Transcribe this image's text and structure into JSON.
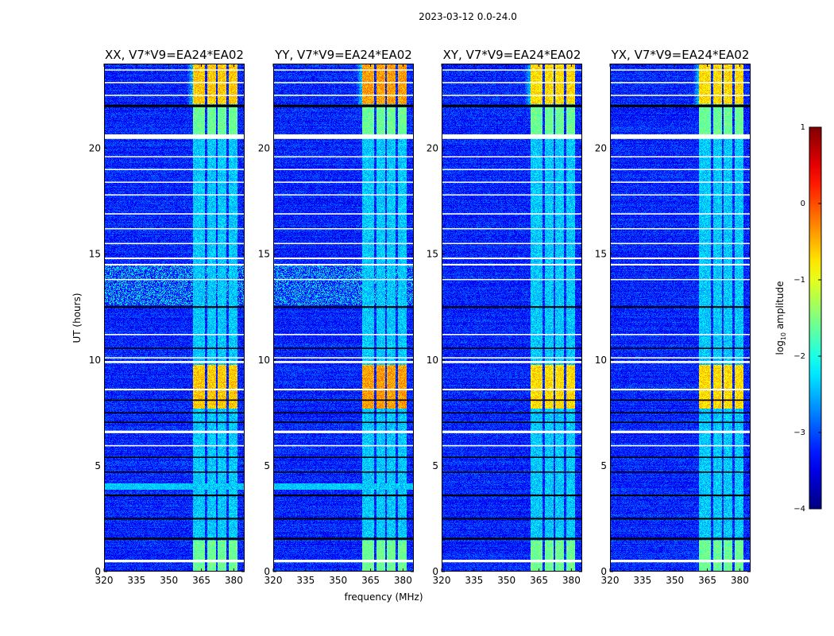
{
  "chart_data": {
    "type": "heatmap",
    "suptitle": "2023-03-12 0.0-24.0",
    "xlabel": "frequency (MHz)",
    "ylabel": "UT (hours)",
    "xlim": [
      320,
      385
    ],
    "ylim": [
      0,
      24
    ],
    "xticks": [
      "320",
      "335",
      "350",
      "365",
      "380"
    ],
    "xtick_values": [
      320,
      335,
      350,
      365,
      380
    ],
    "yticks": [
      "0",
      "5",
      "10",
      "15",
      "20"
    ],
    "ytick_values": [
      0,
      5,
      10,
      15,
      20
    ],
    "panels": [
      {
        "title": "XX, V7*V9=EA24*EA02",
        "bright_level": -0.6,
        "rfi_band_hours": [
          12.6,
          14.5
        ],
        "rfi_band2_hours": [
          3.9,
          4.2
        ]
      },
      {
        "title": "YY, V7*V9=EA24*EA02",
        "bright_level": -0.4,
        "rfi_band_hours": [
          12.6,
          14.5
        ],
        "rfi_band2_hours": [
          3.9,
          4.2
        ]
      },
      {
        "title": "XY, V7*V9=EA24*EA02",
        "bright_level": -0.7,
        "rfi_band_hours": null,
        "rfi_band2_hours": null
      },
      {
        "title": "YX, V7*V9=EA24*EA02",
        "bright_level": -0.7,
        "rfi_band_hours": null,
        "rfi_band2_hours": null
      }
    ],
    "background_level": -3.2,
    "signal_subbands_mhz": [
      [
        361,
        366.5
      ],
      [
        367.5,
        371.5
      ],
      [
        372.5,
        376.5
      ],
      [
        377.5,
        381.5
      ]
    ],
    "bright_periods_hours": [
      [
        22.1,
        24.0
      ],
      [
        7.7,
        9.8
      ]
    ],
    "moderate_periods_hours": [
      [
        20.6,
        22.0
      ],
      [
        0,
        1.5
      ]
    ],
    "flagged_rows": [
      {
        "hour": 0.5,
        "width": 0.12,
        "color": "#ffffff"
      },
      {
        "hour": 1.55,
        "width": 0.1,
        "color": "#000000"
      },
      {
        "hour": 2.5,
        "width": 0.08,
        "color": "#000000"
      },
      {
        "hour": 3.6,
        "width": 0.08,
        "color": "#000000"
      },
      {
        "hour": 4.7,
        "width": 0.06,
        "color": "#000000"
      },
      {
        "hour": 5.4,
        "width": 0.06,
        "color": "#000000"
      },
      {
        "hour": 5.95,
        "width": 0.06,
        "color": "#ffffff"
      },
      {
        "hour": 6.6,
        "width": 0.12,
        "color": "#ffffff"
      },
      {
        "hour": 7.05,
        "width": 0.06,
        "color": "#000000"
      },
      {
        "hour": 7.5,
        "width": 0.06,
        "color": "#000000"
      },
      {
        "hour": 8.1,
        "width": 0.06,
        "color": "#000000"
      },
      {
        "hour": 8.6,
        "width": 0.08,
        "color": "#ffffff"
      },
      {
        "hour": 9.9,
        "width": 0.1,
        "color": "#ffffff"
      },
      {
        "hour": 10.1,
        "width": 0.06,
        "color": "#ffffff"
      },
      {
        "hour": 10.55,
        "width": 0.06,
        "color": "#000000"
      },
      {
        "hour": 11.2,
        "width": 0.06,
        "color": "#ffffff"
      },
      {
        "hour": 12.5,
        "width": 0.08,
        "color": "#000000"
      },
      {
        "hour": 13.8,
        "width": 0.05,
        "color": "#ffffff"
      },
      {
        "hour": 14.5,
        "width": 0.08,
        "color": "#ffffff"
      },
      {
        "hour": 14.8,
        "width": 0.08,
        "color": "#ffffff"
      },
      {
        "hour": 15.5,
        "width": 0.06,
        "color": "#ffffff"
      },
      {
        "hour": 16.2,
        "width": 0.05,
        "color": "#ffffff"
      },
      {
        "hour": 16.9,
        "width": 0.06,
        "color": "#ffffff"
      },
      {
        "hour": 17.8,
        "width": 0.05,
        "color": "#ffffff"
      },
      {
        "hour": 18.4,
        "width": 0.05,
        "color": "#ffffff"
      },
      {
        "hour": 19.0,
        "width": 0.05,
        "color": "#ffffff"
      },
      {
        "hour": 19.6,
        "width": 0.05,
        "color": "#ffffff"
      },
      {
        "hour": 20.55,
        "width": 0.22,
        "color": "#ffffff"
      },
      {
        "hour": 22.0,
        "width": 0.12,
        "color": "#000000"
      },
      {
        "hour": 22.5,
        "width": 0.06,
        "color": "#ffffff"
      },
      {
        "hour": 23.1,
        "width": 0.06,
        "color": "#ffffff"
      },
      {
        "hour": 23.7,
        "width": 0.05,
        "color": "#ffffff"
      }
    ],
    "colorbar": {
      "label": "log10 amplitude",
      "label_main": "log",
      "label_sub": "10",
      "label_rest": " amplitude",
      "range": [
        -4,
        1
      ],
      "ticks": [
        "1",
        "0",
        "−1",
        "−2",
        "−3",
        "−4"
      ],
      "tick_values": [
        1,
        0,
        -1,
        -2,
        -3,
        -4
      ],
      "colormap": "jet"
    }
  }
}
